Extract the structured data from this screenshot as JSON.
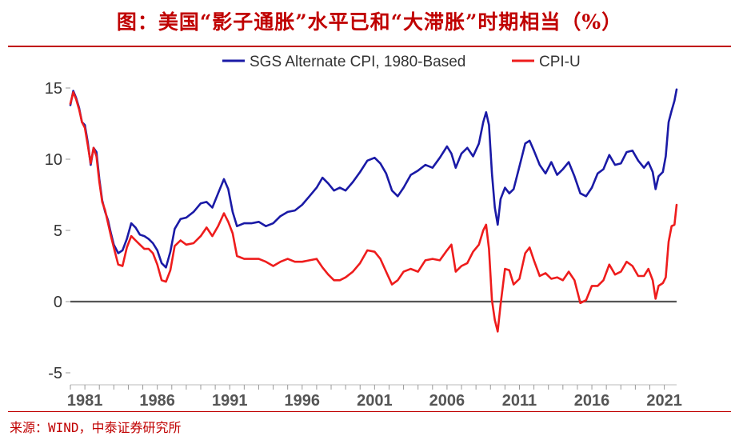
{
  "header": {
    "title": "图：美国“影子通胀”水平已和“大滞胀”时期相当（%）"
  },
  "footer": {
    "source": "来源：WIND，中泰证券研究所"
  },
  "colors": {
    "sgs": "#1a1aa6",
    "cpiu": "#ee1c1c",
    "title": "#c00000",
    "zero_line": "#555555"
  },
  "chart_data": {
    "type": "line",
    "title": "",
    "xlabel": "",
    "ylabel": "",
    "xlim": [
      1980.0,
      2021.85
    ],
    "ylim": [
      -5,
      15
    ],
    "y_ticks": [
      -5,
      0,
      5,
      10,
      15
    ],
    "x_ticks": [
      1981,
      1986,
      1991,
      1996,
      2001,
      2006,
      2011,
      2016,
      2021
    ],
    "zero_line": true,
    "grid": false,
    "legend_position": "top",
    "series": [
      {
        "name": "SGS Alternate CPI, 1980-Based",
        "color": "#1a1aa6",
        "points": [
          [
            1980.0,
            13.8
          ],
          [
            1980.2,
            14.8
          ],
          [
            1980.4,
            14.3
          ],
          [
            1980.6,
            13.6
          ],
          [
            1980.8,
            12.6
          ],
          [
            1981.0,
            12.4
          ],
          [
            1981.2,
            11.2
          ],
          [
            1981.4,
            9.6
          ],
          [
            1981.6,
            10.8
          ],
          [
            1981.8,
            10.5
          ],
          [
            1982.0,
            8.6
          ],
          [
            1982.2,
            7.1
          ],
          [
            1982.4,
            6.3
          ],
          [
            1982.6,
            5.7
          ],
          [
            1982.8,
            4.8
          ],
          [
            1983.0,
            4.0
          ],
          [
            1983.3,
            3.4
          ],
          [
            1983.6,
            3.6
          ],
          [
            1983.9,
            4.4
          ],
          [
            1984.2,
            5.5
          ],
          [
            1984.5,
            5.2
          ],
          [
            1984.8,
            4.7
          ],
          [
            1985.1,
            4.6
          ],
          [
            1985.4,
            4.4
          ],
          [
            1985.7,
            4.1
          ],
          [
            1986.0,
            3.6
          ],
          [
            1986.3,
            2.7
          ],
          [
            1986.6,
            2.4
          ],
          [
            1986.9,
            3.5
          ],
          [
            1987.2,
            5.1
          ],
          [
            1987.6,
            5.8
          ],
          [
            1988.0,
            5.9
          ],
          [
            1988.5,
            6.3
          ],
          [
            1989.0,
            6.9
          ],
          [
            1989.4,
            7.0
          ],
          [
            1989.8,
            6.6
          ],
          [
            1990.2,
            7.6
          ],
          [
            1990.6,
            8.6
          ],
          [
            1990.9,
            7.9
          ],
          [
            1991.2,
            6.3
          ],
          [
            1991.5,
            5.3
          ],
          [
            1992.0,
            5.5
          ],
          [
            1992.5,
            5.5
          ],
          [
            1993.0,
            5.6
          ],
          [
            1993.5,
            5.3
          ],
          [
            1994.0,
            5.5
          ],
          [
            1994.5,
            6.0
          ],
          [
            1995.0,
            6.3
          ],
          [
            1995.5,
            6.4
          ],
          [
            1996.0,
            6.8
          ],
          [
            1996.5,
            7.4
          ],
          [
            1997.0,
            8.0
          ],
          [
            1997.4,
            8.7
          ],
          [
            1997.8,
            8.3
          ],
          [
            1998.2,
            7.8
          ],
          [
            1998.6,
            8.0
          ],
          [
            1999.0,
            7.8
          ],
          [
            1999.5,
            8.4
          ],
          [
            2000.0,
            9.1
          ],
          [
            2000.5,
            9.9
          ],
          [
            2001.0,
            10.1
          ],
          [
            2001.4,
            9.7
          ],
          [
            2001.8,
            9.0
          ],
          [
            2002.2,
            7.8
          ],
          [
            2002.6,
            7.4
          ],
          [
            2003.0,
            8.0
          ],
          [
            2003.5,
            8.9
          ],
          [
            2004.0,
            9.2
          ],
          [
            2004.5,
            9.6
          ],
          [
            2005.0,
            9.4
          ],
          [
            2005.5,
            10.1
          ],
          [
            2006.0,
            10.9
          ],
          [
            2006.3,
            10.4
          ],
          [
            2006.6,
            9.4
          ],
          [
            2007.0,
            10.4
          ],
          [
            2007.4,
            10.8
          ],
          [
            2007.8,
            10.2
          ],
          [
            2008.2,
            11.1
          ],
          [
            2008.5,
            12.6
          ],
          [
            2008.7,
            13.3
          ],
          [
            2008.9,
            12.4
          ],
          [
            2009.1,
            9.0
          ],
          [
            2009.3,
            6.6
          ],
          [
            2009.5,
            5.4
          ],
          [
            2009.7,
            7.2
          ],
          [
            2010.0,
            8.0
          ],
          [
            2010.3,
            7.6
          ],
          [
            2010.6,
            7.9
          ],
          [
            2011.0,
            9.5
          ],
          [
            2011.4,
            11.1
          ],
          [
            2011.7,
            11.3
          ],
          [
            2012.0,
            10.6
          ],
          [
            2012.4,
            9.6
          ],
          [
            2012.8,
            9.0
          ],
          [
            2013.2,
            9.8
          ],
          [
            2013.6,
            8.9
          ],
          [
            2014.0,
            9.3
          ],
          [
            2014.4,
            9.8
          ],
          [
            2014.8,
            8.8
          ],
          [
            2015.2,
            7.6
          ],
          [
            2015.6,
            7.4
          ],
          [
            2016.0,
            8.0
          ],
          [
            2016.4,
            9.0
          ],
          [
            2016.8,
            9.3
          ],
          [
            2017.2,
            10.3
          ],
          [
            2017.6,
            9.6
          ],
          [
            2018.0,
            9.7
          ],
          [
            2018.4,
            10.5
          ],
          [
            2018.8,
            10.6
          ],
          [
            2019.2,
            9.9
          ],
          [
            2019.6,
            9.4
          ],
          [
            2019.9,
            9.8
          ],
          [
            2020.2,
            9.1
          ],
          [
            2020.4,
            7.9
          ],
          [
            2020.6,
            8.8
          ],
          [
            2020.9,
            9.1
          ],
          [
            2021.1,
            10.2
          ],
          [
            2021.3,
            12.6
          ],
          [
            2021.5,
            13.4
          ],
          [
            2021.7,
            14.1
          ],
          [
            2021.85,
            14.9
          ]
        ]
      },
      {
        "name": "CPI-U",
        "color": "#ee1c1c",
        "points": [
          [
            1980.0,
            13.9
          ],
          [
            1980.2,
            14.7
          ],
          [
            1980.4,
            14.2
          ],
          [
            1980.6,
            13.5
          ],
          [
            1980.8,
            12.6
          ],
          [
            1981.0,
            12.2
          ],
          [
            1981.2,
            11.0
          ],
          [
            1981.4,
            9.7
          ],
          [
            1981.6,
            10.8
          ],
          [
            1981.8,
            10.2
          ],
          [
            1982.0,
            8.4
          ],
          [
            1982.2,
            7.0
          ],
          [
            1982.4,
            6.4
          ],
          [
            1982.6,
            5.5
          ],
          [
            1982.8,
            4.6
          ],
          [
            1983.0,
            3.8
          ],
          [
            1983.3,
            2.6
          ],
          [
            1983.6,
            2.5
          ],
          [
            1983.9,
            3.8
          ],
          [
            1984.2,
            4.6
          ],
          [
            1984.5,
            4.3
          ],
          [
            1984.8,
            4.0
          ],
          [
            1985.1,
            3.7
          ],
          [
            1985.4,
            3.7
          ],
          [
            1985.7,
            3.4
          ],
          [
            1986.0,
            2.6
          ],
          [
            1986.3,
            1.5
          ],
          [
            1986.6,
            1.4
          ],
          [
            1986.9,
            2.2
          ],
          [
            1987.2,
            3.9
          ],
          [
            1987.6,
            4.3
          ],
          [
            1988.0,
            4.0
          ],
          [
            1988.5,
            4.1
          ],
          [
            1989.0,
            4.6
          ],
          [
            1989.4,
            5.2
          ],
          [
            1989.8,
            4.6
          ],
          [
            1990.2,
            5.3
          ],
          [
            1990.6,
            6.2
          ],
          [
            1990.9,
            5.6
          ],
          [
            1991.2,
            4.8
          ],
          [
            1991.5,
            3.2
          ],
          [
            1992.0,
            3.0
          ],
          [
            1992.5,
            3.0
          ],
          [
            1993.0,
            3.0
          ],
          [
            1993.5,
            2.8
          ],
          [
            1994.0,
            2.5
          ],
          [
            1994.5,
            2.8
          ],
          [
            1995.0,
            3.0
          ],
          [
            1995.5,
            2.8
          ],
          [
            1996.0,
            2.8
          ],
          [
            1996.5,
            2.9
          ],
          [
            1997.0,
            3.0
          ],
          [
            1997.4,
            2.4
          ],
          [
            1997.8,
            1.9
          ],
          [
            1998.2,
            1.5
          ],
          [
            1998.6,
            1.5
          ],
          [
            1999.0,
            1.7
          ],
          [
            1999.5,
            2.1
          ],
          [
            2000.0,
            2.7
          ],
          [
            2000.5,
            3.6
          ],
          [
            2001.0,
            3.5
          ],
          [
            2001.4,
            3.0
          ],
          [
            2001.8,
            2.1
          ],
          [
            2002.2,
            1.2
          ],
          [
            2002.6,
            1.5
          ],
          [
            2003.0,
            2.1
          ],
          [
            2003.5,
            2.3
          ],
          [
            2004.0,
            2.1
          ],
          [
            2004.5,
            2.9
          ],
          [
            2005.0,
            3.0
          ],
          [
            2005.5,
            2.9
          ],
          [
            2006.0,
            3.6
          ],
          [
            2006.3,
            4.0
          ],
          [
            2006.6,
            2.1
          ],
          [
            2007.0,
            2.5
          ],
          [
            2007.4,
            2.7
          ],
          [
            2007.8,
            3.5
          ],
          [
            2008.2,
            4.0
          ],
          [
            2008.5,
            5.0
          ],
          [
            2008.7,
            5.4
          ],
          [
            2008.9,
            3.7
          ],
          [
            2009.1,
            0.1
          ],
          [
            2009.3,
            -1.3
          ],
          [
            2009.5,
            -2.1
          ],
          [
            2009.7,
            -0.2
          ],
          [
            2010.0,
            2.3
          ],
          [
            2010.3,
            2.2
          ],
          [
            2010.6,
            1.2
          ],
          [
            2011.0,
            1.6
          ],
          [
            2011.4,
            3.4
          ],
          [
            2011.7,
            3.8
          ],
          [
            2012.0,
            2.9
          ],
          [
            2012.4,
            1.8
          ],
          [
            2012.8,
            2.0
          ],
          [
            2013.2,
            1.6
          ],
          [
            2013.6,
            1.7
          ],
          [
            2014.0,
            1.5
          ],
          [
            2014.4,
            2.1
          ],
          [
            2014.8,
            1.5
          ],
          [
            2015.2,
            -0.1
          ],
          [
            2015.6,
            0.1
          ],
          [
            2016.0,
            1.1
          ],
          [
            2016.4,
            1.1
          ],
          [
            2016.8,
            1.5
          ],
          [
            2017.2,
            2.6
          ],
          [
            2017.6,
            1.9
          ],
          [
            2018.0,
            2.1
          ],
          [
            2018.4,
            2.8
          ],
          [
            2018.8,
            2.5
          ],
          [
            2019.2,
            1.8
          ],
          [
            2019.6,
            1.8
          ],
          [
            2019.9,
            2.3
          ],
          [
            2020.2,
            1.5
          ],
          [
            2020.4,
            0.2
          ],
          [
            2020.6,
            1.1
          ],
          [
            2020.9,
            1.3
          ],
          [
            2021.1,
            1.7
          ],
          [
            2021.3,
            4.2
          ],
          [
            2021.5,
            5.3
          ],
          [
            2021.7,
            5.4
          ],
          [
            2021.85,
            6.8
          ]
        ]
      }
    ]
  }
}
